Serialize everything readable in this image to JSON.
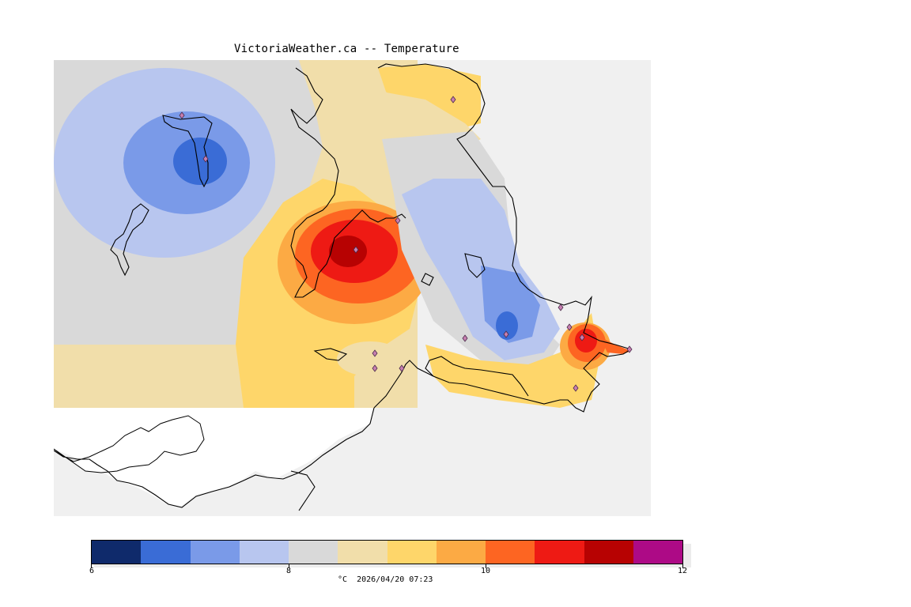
{
  "title": "VictoriaWeather.ca -- Temperature",
  "legend": {
    "colors": [
      "#0f2a6b",
      "#3a6cd6",
      "#7a9ae8",
      "#b8c6ef",
      "#d9d9d9",
      "#f1deaa",
      "#fed66a",
      "#fcaa44",
      "#fd6522",
      "#ee1a14",
      "#b70202",
      "#ad0a86"
    ],
    "tick_labels": [
      "6",
      "8",
      "10",
      "12"
    ],
    "tick_values": [
      6,
      8,
      10,
      12
    ],
    "range": [
      6,
      12
    ],
    "caption": "°C  2026/04/20 07:23"
  },
  "map": {
    "background_color": "#f0f0f0",
    "land_uncovered_color": "#ffffff",
    "station_marker": "diamond-icon"
  }
}
